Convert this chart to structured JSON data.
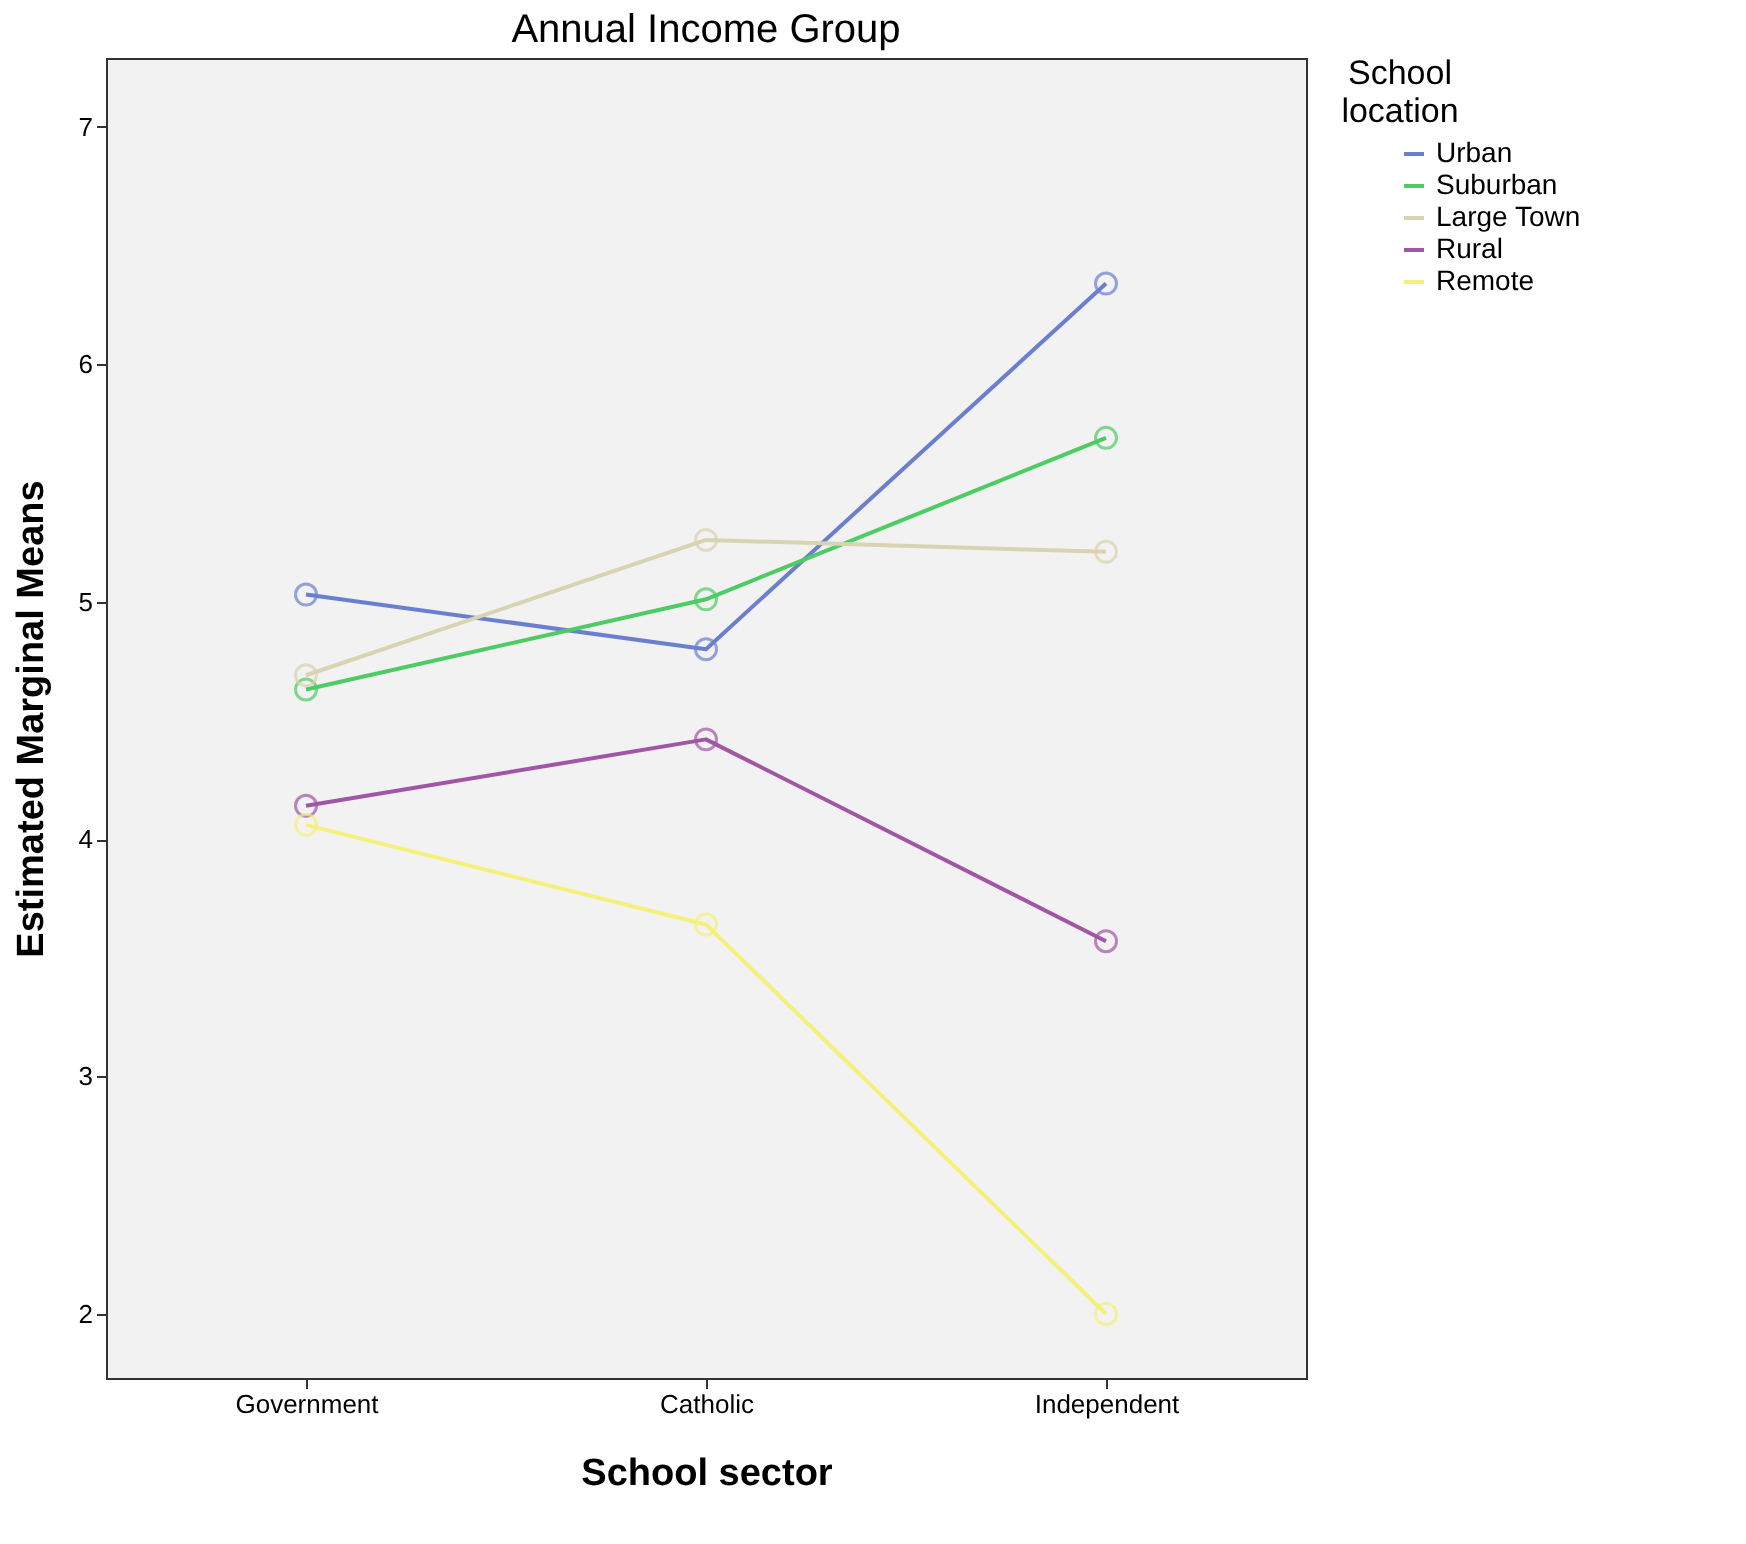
{
  "chart_data": {
    "type": "line",
    "title": "Annual Income Group",
    "xlabel": "School sector",
    "ylabel": "Estimated Marginal Means",
    "legend_title": "School location",
    "categories": [
      "Government",
      "Catholic",
      "Independent"
    ],
    "series": [
      {
        "name": "Urban",
        "color": "#6b7fcf",
        "values": [
          5.03,
          4.8,
          6.34
        ]
      },
      {
        "name": "Suburban",
        "color": "#4ccc62",
        "values": [
          4.63,
          5.01,
          5.69
        ]
      },
      {
        "name": "Large Town",
        "color": "#d8d3b0",
        "values": [
          4.69,
          5.26,
          5.21
        ]
      },
      {
        "name": "Rural",
        "color": "#a056a5",
        "values": [
          4.14,
          4.42,
          3.57
        ]
      },
      {
        "name": "Remote",
        "color": "#f5f07a",
        "values": [
          4.06,
          3.64,
          2.0
        ]
      }
    ],
    "ylim": [
      1.73,
      7.29
    ],
    "yticks": [
      2,
      3,
      4,
      5,
      6,
      7
    ],
    "grid": false,
    "legend": "right",
    "marker": "circle",
    "line_style": "solid"
  }
}
